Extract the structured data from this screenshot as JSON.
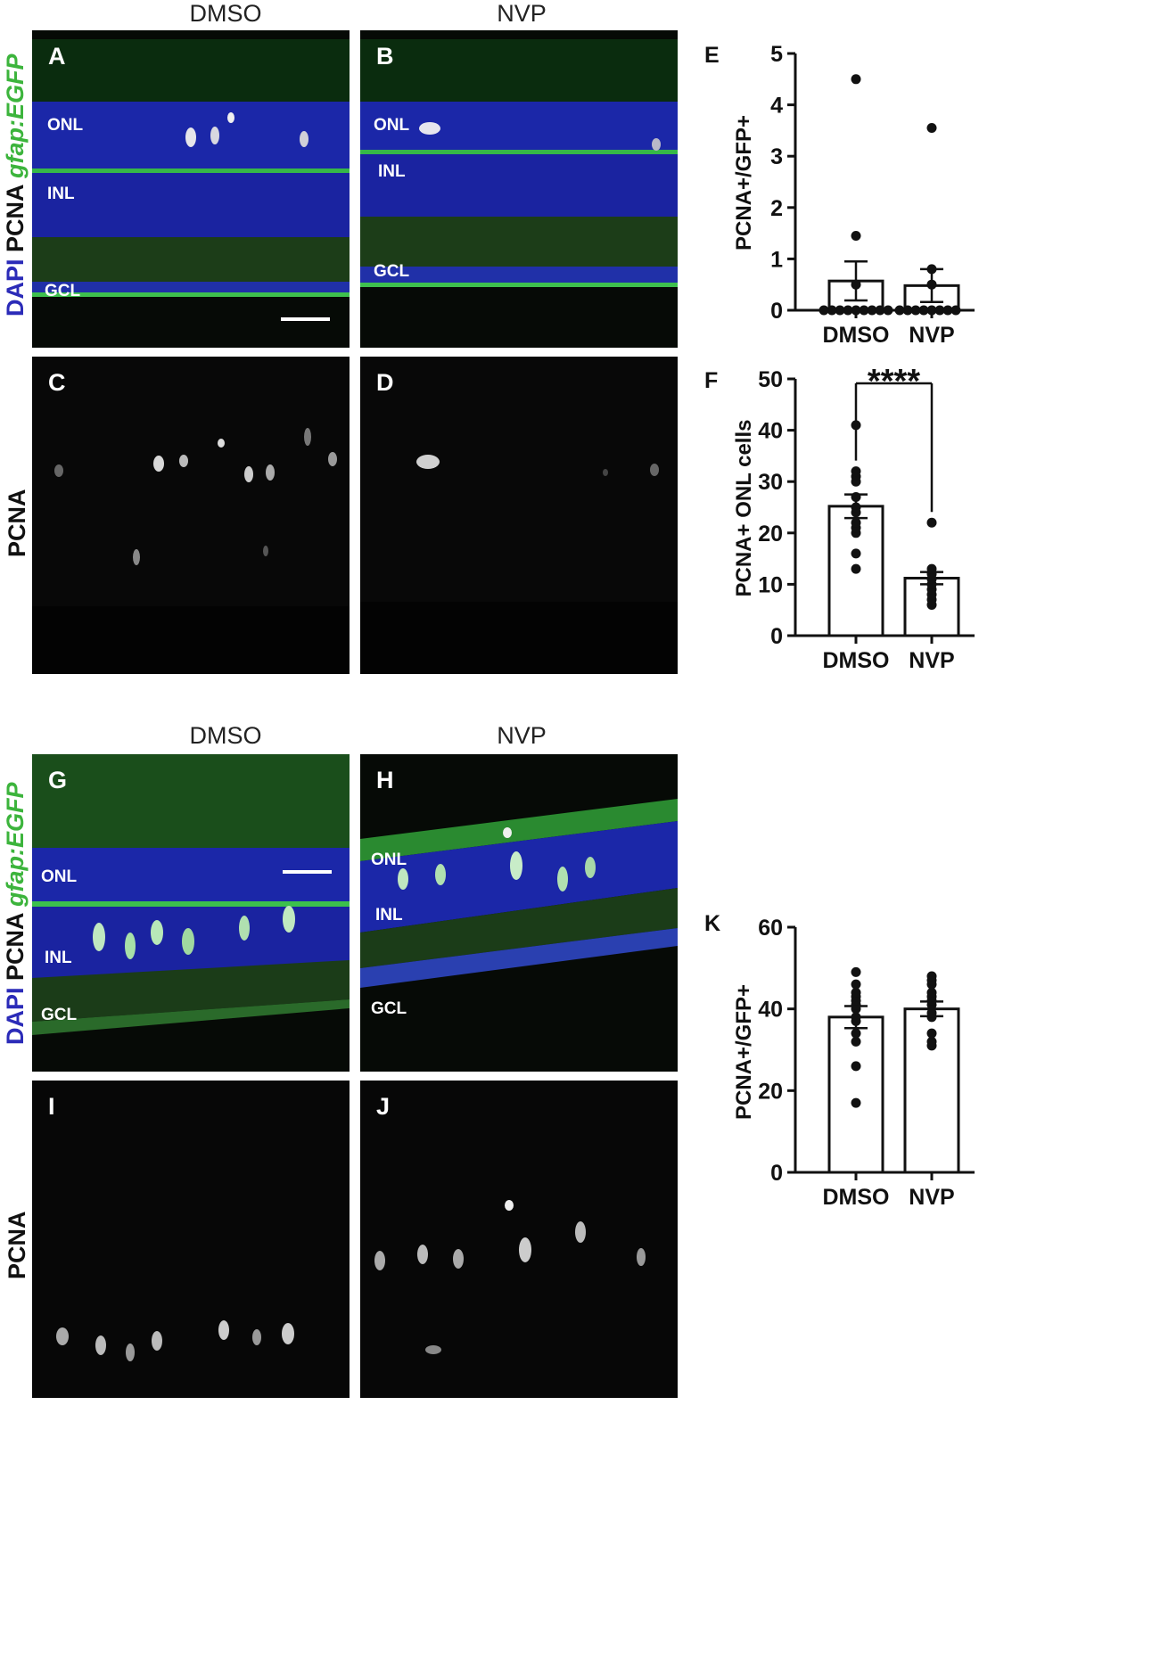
{
  "top": {
    "col_left": "DMSO",
    "col_right": "NVP",
    "row1_label": {
      "dapi": "DAPI",
      "pcna": "PCNA",
      "gfp": "gfap:EGFP"
    },
    "row2_label": "PCNA",
    "panels": {
      "A": {
        "letter": "A",
        "onl": "ONL",
        "inl": "INL",
        "gcl": "GCL"
      },
      "B": {
        "letter": "B",
        "onl": "ONL",
        "inl": "INL",
        "gcl": "GCL"
      },
      "C": {
        "letter": "C"
      },
      "D": {
        "letter": "D"
      }
    }
  },
  "bottom": {
    "col_left": "DMSO",
    "col_right": "NVP",
    "row1_label": {
      "dapi": "DAPI",
      "pcna": "PCNA",
      "gfp": "gfap:EGFP"
    },
    "row2_label": "PCNA",
    "panels": {
      "G": {
        "letter": "G",
        "onl": "ONL",
        "inl": "INL",
        "gcl": "GCL"
      },
      "H": {
        "letter": "H",
        "onl": "ONL",
        "inl": "INL",
        "gcl": "GCL"
      },
      "I": {
        "letter": "I"
      },
      "J": {
        "letter": "J"
      }
    }
  },
  "chart_data": [
    {
      "id": "E",
      "type": "bar",
      "letter": "E",
      "categories": [
        "DMSO",
        "NVP"
      ],
      "values": [
        0.57,
        0.48
      ],
      "sem": [
        0.38,
        0.32
      ],
      "points": [
        [
          0,
          0,
          0,
          0,
          0,
          0,
          0,
          0,
          0,
          0.5,
          1.45,
          4.5
        ],
        [
          0,
          0,
          0,
          0,
          0,
          0,
          0,
          0,
          0.5,
          0.8,
          3.55
        ]
      ],
      "ylabel": "PCNA+/GFP+",
      "ylim": [
        0,
        5
      ],
      "yticks": [
        0,
        1,
        2,
        3,
        4,
        5
      ],
      "significance": ""
    },
    {
      "id": "F",
      "type": "bar",
      "letter": "F",
      "categories": [
        "DMSO",
        "NVP"
      ],
      "values": [
        25.2,
        11.2
      ],
      "sem": [
        2.3,
        1.2
      ],
      "points": [
        [
          13,
          16,
          20,
          21,
          22,
          24,
          25,
          27,
          30,
          31,
          32,
          41
        ],
        [
          6,
          7,
          8,
          9,
          10,
          11,
          12,
          13,
          22
        ]
      ],
      "ylabel": "PCNA+ ONL cells",
      "ylim": [
        0,
        50
      ],
      "yticks": [
        0,
        10,
        20,
        30,
        40,
        50
      ],
      "significance": "****"
    },
    {
      "id": "K",
      "type": "bar",
      "letter": "K",
      "categories": [
        "DMSO",
        "NVP"
      ],
      "values": [
        38,
        40
      ],
      "sem": [
        2.7,
        1.8
      ],
      "points": [
        [
          17,
          26,
          32,
          34,
          37,
          38,
          40,
          41,
          42,
          43,
          44,
          46,
          49
        ],
        [
          31,
          32,
          34,
          38,
          39,
          41,
          42,
          43,
          44,
          46,
          47,
          48
        ]
      ],
      "ylabel": "PCNA+/GFP+",
      "ylim": [
        0,
        60
      ],
      "yticks": [
        0,
        20,
        40,
        60
      ],
      "significance": ""
    }
  ]
}
